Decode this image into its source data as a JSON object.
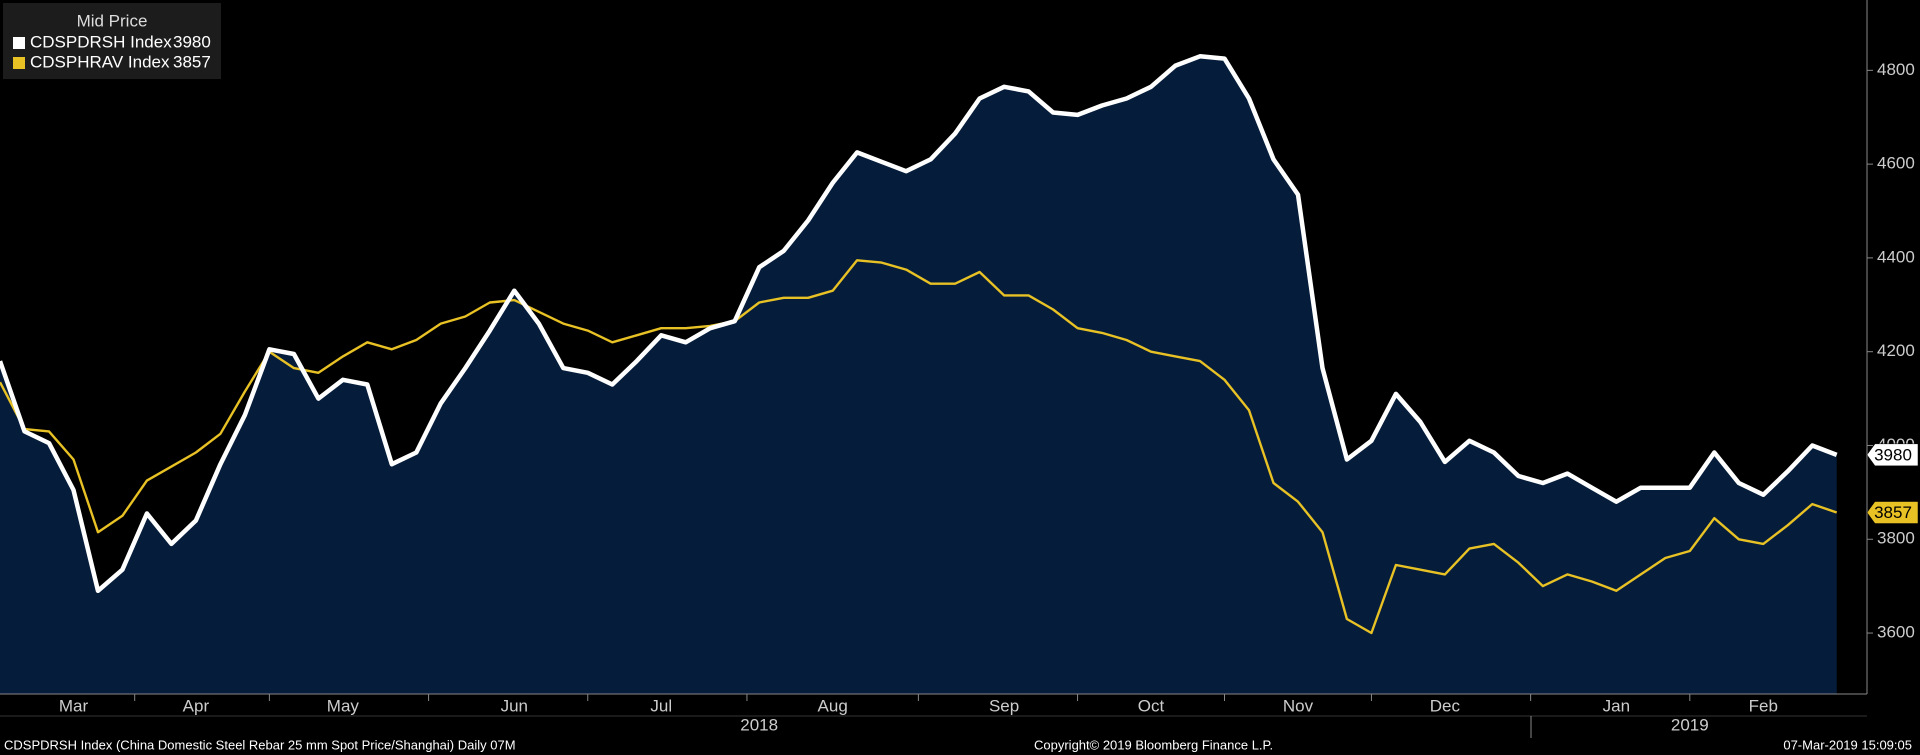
{
  "chart_data": {
    "type": "line",
    "legend_title": "Mid Price",
    "categories": [
      null,
      null,
      null,
      "Mar",
      null,
      null,
      null,
      null,
      "Apr",
      null,
      null,
      null,
      null,
      null,
      "May",
      null,
      null,
      null,
      null,
      null,
      null,
      "Jun",
      null,
      null,
      null,
      null,
      null,
      "Jul",
      null,
      null,
      null,
      null,
      null,
      null,
      "Aug",
      null,
      null,
      null,
      null,
      null,
      null,
      "Sep",
      null,
      null,
      null,
      null,
      null,
      "Oct",
      null,
      null,
      null,
      null,
      null,
      "Nov",
      null,
      null,
      null,
      null,
      null,
      "Dec",
      null,
      null,
      null,
      null,
      null,
      null,
      "Jan",
      null,
      null,
      null,
      null,
      null,
      "Feb",
      null,
      null,
      null
    ],
    "year_categories": [
      null,
      null,
      null,
      null,
      null,
      null,
      null,
      null,
      null,
      null,
      null,
      null,
      null,
      null,
      null,
      null,
      null,
      null,
      null,
      null,
      null,
      null,
      null,
      null,
      null,
      null,
      null,
      null,
      null,
      null,
      null,
      "2018",
      null,
      null,
      null,
      null,
      null,
      null,
      null,
      null,
      null,
      null,
      null,
      null,
      null,
      null,
      null,
      null,
      null,
      null,
      null,
      null,
      null,
      null,
      null,
      null,
      null,
      null,
      null,
      null,
      null,
      null,
      null,
      null,
      null,
      null,
      null,
      null,
      null,
      "2019",
      null,
      null,
      null,
      null,
      null,
      null
    ],
    "series": [
      {
        "name": "CDSPDRSH Index",
        "color": "#ffffff",
        "area_color": "#051d3b",
        "values": [
          4180,
          4030,
          4005,
          3905,
          3690,
          3735,
          3855,
          3790,
          3840,
          3960,
          4065,
          4205,
          4195,
          4100,
          4140,
          4130,
          3960,
          3985,
          4090,
          4165,
          4245,
          4330,
          4260,
          4165,
          4155,
          4130,
          4180,
          4235,
          4220,
          4250,
          4265,
          4380,
          4415,
          4480,
          4560,
          4625,
          4605,
          4585,
          4610,
          4665,
          4740,
          4765,
          4755,
          4710,
          4705,
          4725,
          4740,
          4765,
          4810,
          4830,
          4825,
          4740,
          4610,
          4535,
          4165,
          3970,
          4010,
          4110,
          4050,
          3965,
          4010,
          3985,
          3935,
          3920,
          3940,
          3910,
          3880,
          3910,
          3910,
          3910,
          3985,
          3920,
          3895,
          3945,
          4000,
          3980
        ]
      },
      {
        "name": "CDSPHRAV Index",
        "color": "#e8c125",
        "values": [
          4135,
          4035,
          4030,
          3970,
          3815,
          3850,
          3925,
          3955,
          3985,
          4025,
          4115,
          4200,
          4165,
          4155,
          4190,
          4220,
          4205,
          4225,
          4260,
          4275,
          4305,
          4310,
          4285,
          4260,
          4245,
          4220,
          4235,
          4250,
          4250,
          4255,
          4265,
          4305,
          4315,
          4315,
          4330,
          4395,
          4390,
          4375,
          4345,
          4345,
          4370,
          4320,
          4320,
          4290,
          4250,
          4240,
          4225,
          4200,
          4190,
          4180,
          4140,
          4075,
          3920,
          3880,
          3815,
          3630,
          3600,
          3745,
          3735,
          3725,
          3780,
          3790,
          3750,
          3700,
          3725,
          3710,
          3690,
          3725,
          3760,
          3775,
          3845,
          3800,
          3790,
          3830,
          3875,
          3857
        ]
      }
    ],
    "ylim": [
      3470,
      4950
    ],
    "yticks": [
      3600,
      3800,
      4000,
      4200,
      4400,
      4600,
      4800
    ],
    "y_axis_side": "right"
  },
  "footer": {
    "left": "CDSPDRSH Index (China Domestic Steel Rebar 25 mm Spot Price/Shanghai)  Daily 07M",
    "center": "Copyright© 2019 Bloomberg Finance L.P.",
    "right": "07-Mar-2019 15:09:05"
  }
}
